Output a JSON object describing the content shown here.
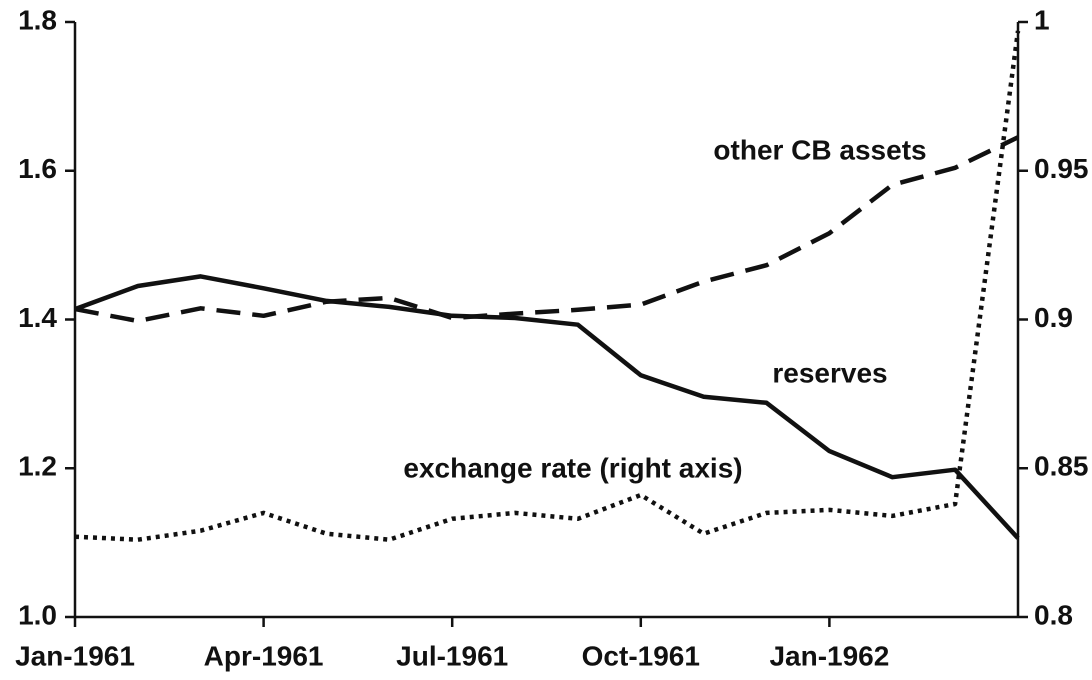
{
  "chart_data": {
    "type": "line",
    "categories": [
      "Jan-1961",
      null,
      null,
      "Apr-1961",
      null,
      null,
      "Jul-1961",
      null,
      null,
      "Oct-1961",
      null,
      null,
      "Jan-1962",
      null,
      null,
      null
    ],
    "series": [
      {
        "name": "reserves",
        "color": "#111111",
        "style": "solid",
        "values": [
          1.414,
          1.445,
          1.458,
          1.442,
          1.425,
          1.417,
          1.405,
          1.402,
          1.393,
          1.325,
          1.296,
          1.288,
          1.223,
          1.188,
          1.198,
          1.106
        ]
      },
      {
        "name": "other CB assets",
        "color": "#111111",
        "style": "dashed",
        "values": [
          1.414,
          1.398,
          1.415,
          1.405,
          1.424,
          1.429,
          1.402,
          1.408,
          1.413,
          1.42,
          1.451,
          1.473,
          1.516,
          1.581,
          1.604,
          1.645
        ]
      },
      {
        "name": "exchange rate (right axis)",
        "color": "#111111",
        "style": "dotted",
        "axis": "y2",
        "values": [
          0.827,
          0.826,
          0.829,
          0.835,
          0.828,
          0.826,
          0.833,
          0.835,
          0.833,
          0.841,
          0.828,
          0.835,
          0.836,
          0.834,
          0.838,
          0.997
        ]
      }
    ],
    "ylim": [
      1.0,
      1.8
    ],
    "yticks": [
      {
        "value": 1.0,
        "label": "1.0"
      },
      1.2,
      1.4,
      1.6,
      1.8
    ],
    "y2lim": [
      0.8,
      1
    ],
    "y2ticks": [
      0.8,
      0.85,
      0.9,
      0.95,
      1
    ],
    "grid": false,
    "legend": "inline"
  }
}
